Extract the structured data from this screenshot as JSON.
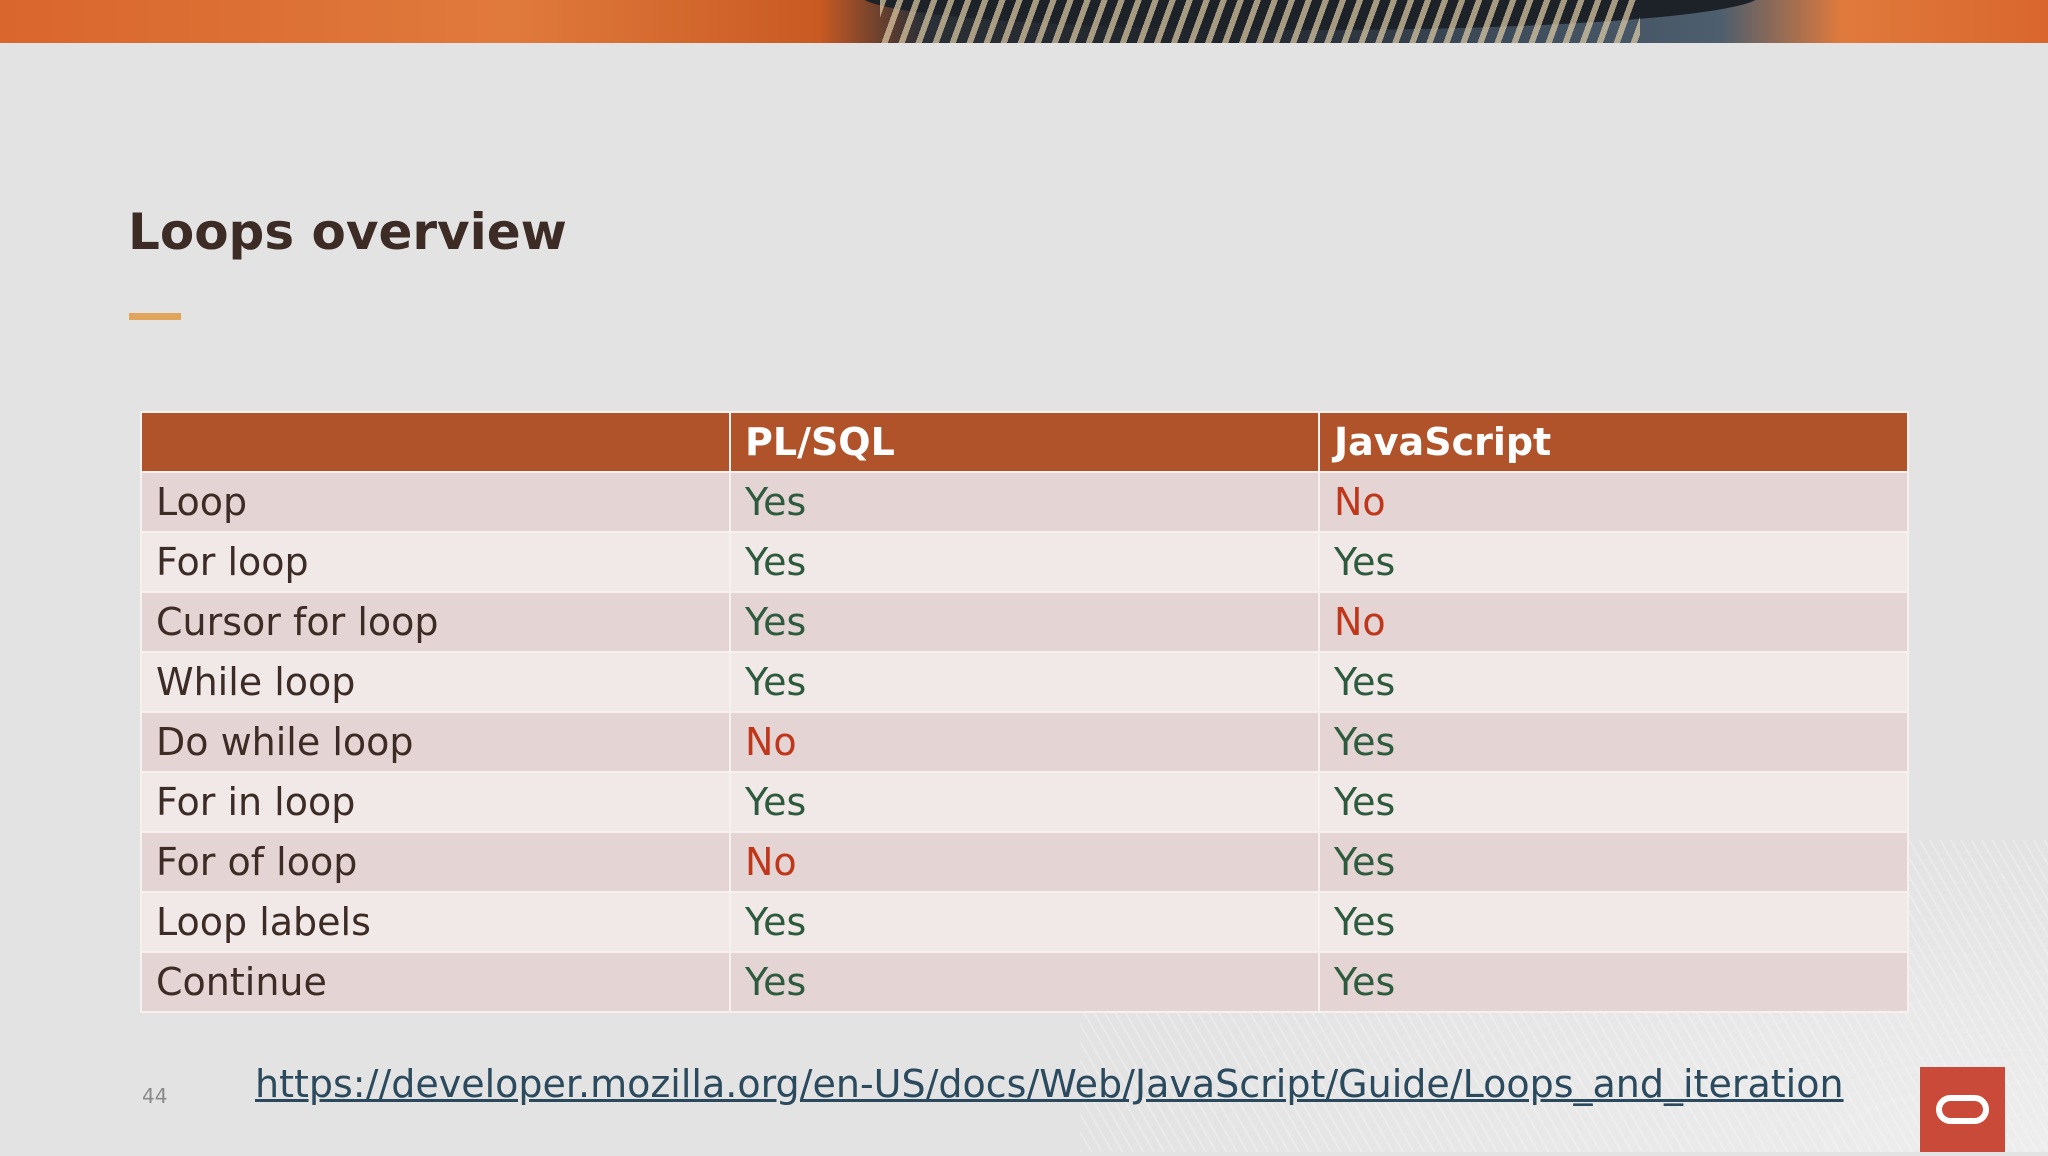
{
  "slide": {
    "title": "Loops overview",
    "page_number": "44",
    "reference_link": "https://developer.mozilla.org/en-US/docs/Web/JavaScript/Guide/Loops_and_iteration"
  },
  "table": {
    "headers": [
      "",
      "PL/SQL",
      "JavaScript"
    ],
    "rows": [
      {
        "feature": "Loop",
        "plsql": "Yes",
        "javascript": "No"
      },
      {
        "feature": "For loop",
        "plsql": "Yes",
        "javascript": "Yes"
      },
      {
        "feature": "Cursor for loop",
        "plsql": "Yes",
        "javascript": "No"
      },
      {
        "feature": "While loop",
        "plsql": "Yes",
        "javascript": "Yes"
      },
      {
        "feature": "Do while loop",
        "plsql": "No",
        "javascript": "Yes"
      },
      {
        "feature": "For in loop",
        "plsql": "Yes",
        "javascript": "Yes"
      },
      {
        "feature": "For of loop",
        "plsql": "No",
        "javascript": "Yes"
      },
      {
        "feature": "Loop labels",
        "plsql": "Yes",
        "javascript": "Yes"
      },
      {
        "feature": "Continue",
        "plsql": "Yes",
        "javascript": "Yes"
      }
    ]
  },
  "colors": {
    "header_bg": "#b0532a",
    "yes_text": "#2e5b3e",
    "no_text": "#c0361a",
    "accent": "#e0a55a",
    "logo": "#c94a38"
  },
  "icons": {
    "brand_logo": "oracle-logo-icon"
  }
}
